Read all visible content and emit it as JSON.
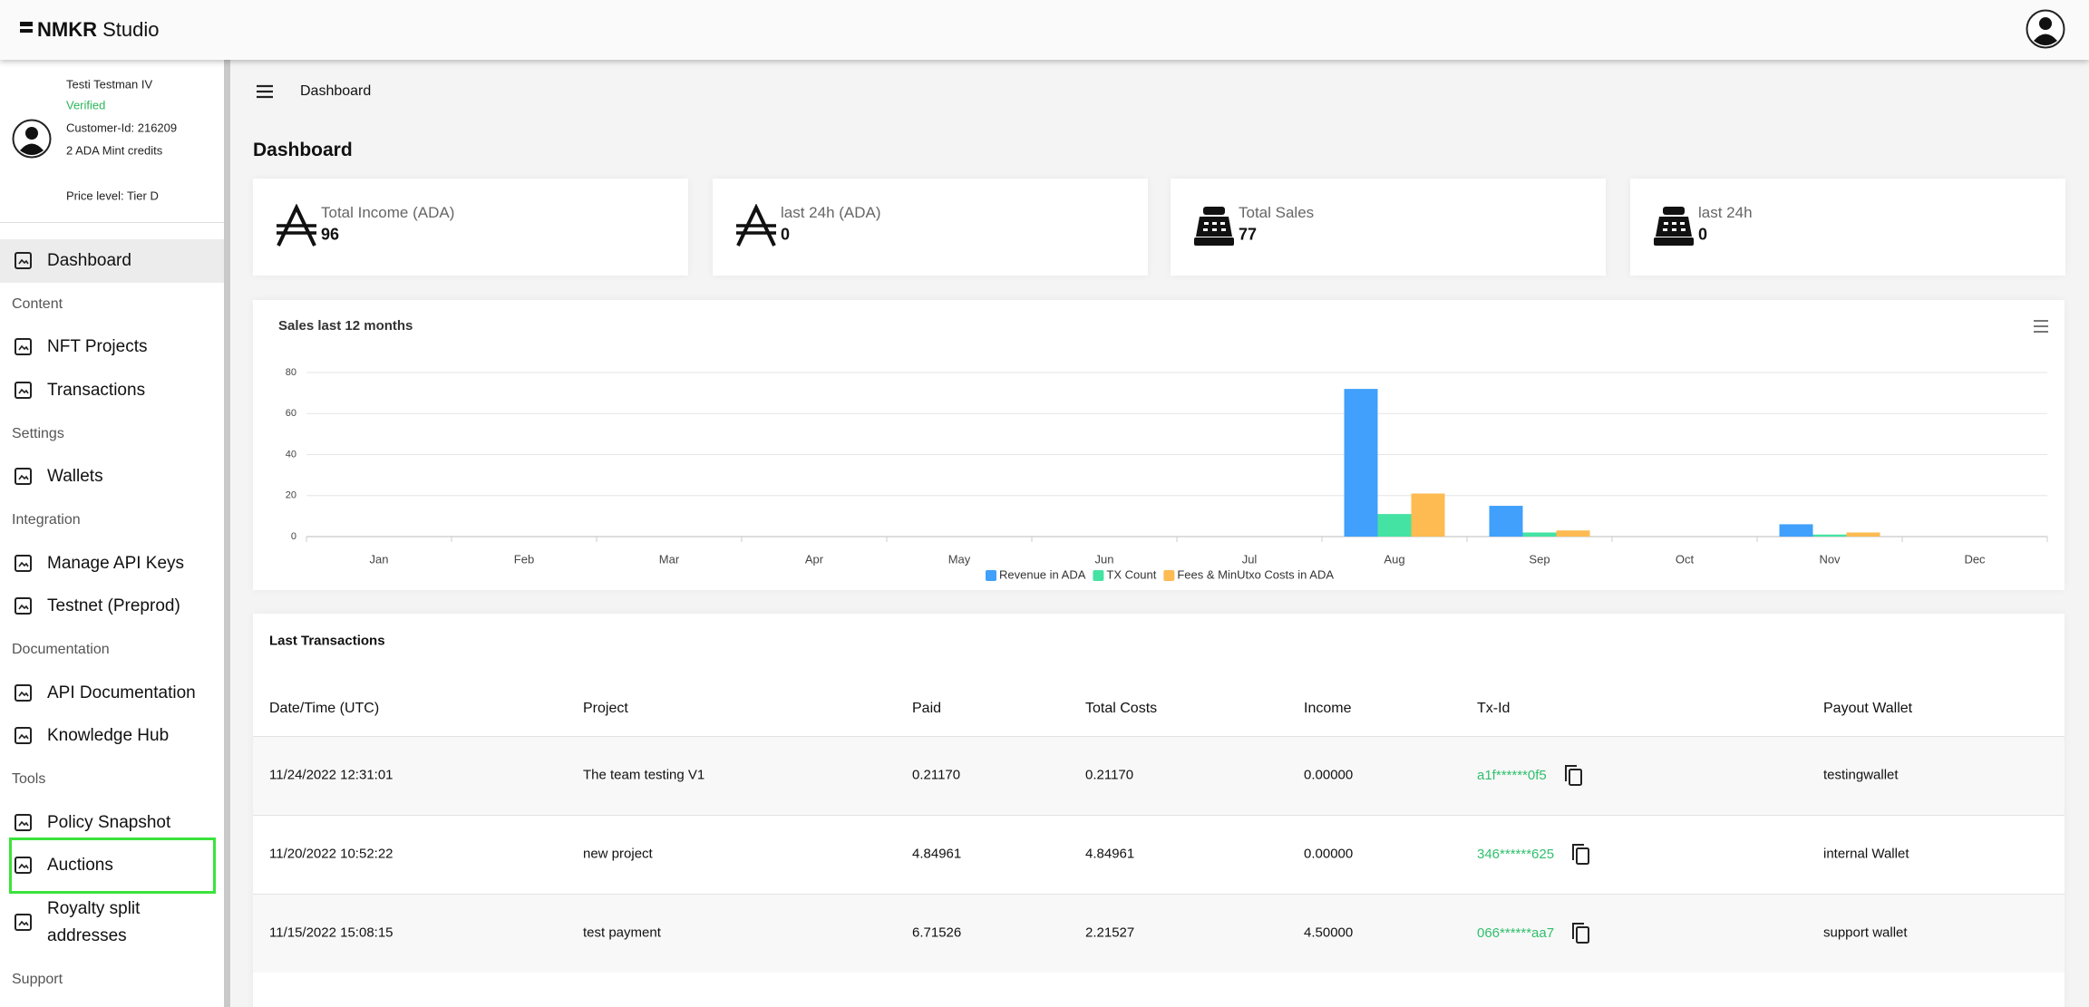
{
  "header": {
    "brand": "NMKR",
    "product": "Studio"
  },
  "profile": {
    "name": "Testi Testman IV",
    "status": "Verified",
    "customer_id": "Customer-Id: 216209",
    "credits": "2 ADA Mint credits",
    "price_level": "Price level: Tier D"
  },
  "sidebar": {
    "dashboard": "Dashboard",
    "sections": [
      {
        "title": "Content",
        "items": [
          "NFT Projects",
          "Transactions"
        ]
      },
      {
        "title": "Settings",
        "items": [
          "Wallets"
        ]
      },
      {
        "title": "Integration",
        "items": [
          "Manage API Keys",
          "Testnet (Preprod)"
        ]
      },
      {
        "title": "Documentation",
        "items": [
          "API Documentation",
          "Knowledge Hub"
        ]
      },
      {
        "title": "Tools",
        "items": [
          "Policy Snapshot",
          "Auctions",
          "Royalty split addresses"
        ]
      },
      {
        "title": "Support"
      }
    ]
  },
  "breadcrumb": "Dashboard",
  "heading": "Dashboard",
  "cards": [
    {
      "label": "Total Income (ADA)",
      "value": 96
    },
    {
      "label": "last 24h (ADA)",
      "value": 0
    },
    {
      "label": "Total Sales",
      "value": 77
    },
    {
      "label": "last 24h",
      "value": 0
    }
  ],
  "chart_data": {
    "type": "bar",
    "title": "Sales last 12 months",
    "categories": [
      "Jan",
      "Feb",
      "Mar",
      "Apr",
      "May",
      "Jun",
      "Jul",
      "Aug",
      "Sep",
      "Oct",
      "Nov",
      "Dec"
    ],
    "series": [
      {
        "name": "Revenue in ADA",
        "color": "#40a0fb",
        "values": [
          0,
          0,
          0,
          0,
          0,
          0,
          0,
          72,
          15,
          0,
          6,
          0
        ]
      },
      {
        "name": "TX Count",
        "color": "#45e3a3",
        "values": [
          0,
          0,
          0,
          0,
          0,
          0,
          0,
          11,
          2,
          0,
          1,
          0
        ]
      },
      {
        "name": "Fees & MinUtxo Costs in ADA",
        "color": "#fdbb52",
        "values": [
          0,
          0,
          0,
          0,
          0,
          0,
          0,
          21,
          3,
          0,
          2,
          0
        ]
      }
    ],
    "ylim": [
      0,
      80
    ],
    "yticks": [
      0,
      20,
      40,
      60,
      80
    ],
    "grid": true
  },
  "table": {
    "title": "Last Transactions",
    "columns": [
      "Date/Time (UTC)",
      "Project",
      "Paid",
      "Total Costs",
      "Income",
      "Tx-Id",
      "Payout Wallet"
    ],
    "rows": [
      [
        "11/24/2022 12:31:01",
        "The team testing V1",
        "0.21170",
        "0.21170",
        "0.00000",
        "a1f******0f5",
        "testingwallet"
      ],
      [
        "11/20/2022 10:52:22",
        "new project",
        "4.84961",
        "4.84961",
        "0.00000",
        "346******625",
        "internal Wallet"
      ],
      [
        "11/15/2022 15:08:15",
        "test payment",
        "6.71526",
        "2.21527",
        "4.50000",
        "066******aa7",
        "support wallet"
      ]
    ]
  }
}
